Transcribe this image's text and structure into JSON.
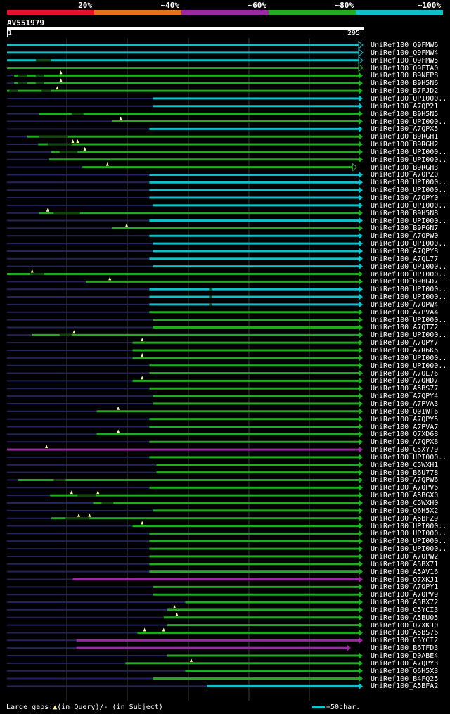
{
  "query": {
    "id": "AV551979",
    "start": "1",
    "end": "295",
    "length": 295
  },
  "legend": {
    "labels": [
      "20%",
      "~40%",
      "~60%",
      "~80%",
      "~100%"
    ],
    "colors": [
      "#e8102a",
      "#e8721a",
      "#9a2aa0",
      "#22aa22",
      "#10c0c8"
    ]
  },
  "footer": {
    "large_gaps": "Large gaps:",
    "query_part": "(in Query)/",
    "subject_part": "- (in Subject)",
    "triangle": "▲",
    "scale": "=50char."
  },
  "hits": [
    {
      "label": "UniRef100_Q9FMW6",
      "start": 1,
      "end": 295,
      "color": "#10c0c8",
      "hl": [],
      "arrow": "outline"
    },
    {
      "label": "UniRef100_Q9FMW4",
      "start": 1,
      "end": 295,
      "color": "#10c0c8",
      "hl": [],
      "arrow": "outline"
    },
    {
      "label": "UniRef100_Q9FMW5",
      "start": 1,
      "end": 295,
      "color": "#10c0c8",
      "hl": [
        [
          25,
          38
        ]
      ],
      "arrow": "outline"
    },
    {
      "label": "UniRef100_Q9FTA0",
      "start": 1,
      "end": 295,
      "color": "#22aa22",
      "hl": [],
      "arrow": "outline"
    },
    {
      "label": "UniRef100_B9NEP8",
      "start": 7,
      "end": 295,
      "color": "#22aa22",
      "hl": [
        [
          10,
          18
        ],
        [
          25,
          32
        ]
      ],
      "arrow": "solid",
      "gaps": [
        46
      ]
    },
    {
      "label": "UniRef100_B9H5N6",
      "start": 7,
      "end": 295,
      "color": "#22aa22",
      "hl": [
        [
          10,
          18
        ],
        [
          25,
          32
        ]
      ],
      "arrow": "solid",
      "gaps": [
        46
      ]
    },
    {
      "label": "UniRef100_B7FJD2",
      "start": 1,
      "end": 295,
      "color": "#22aa22",
      "hl": [
        [
          3,
          10
        ],
        [
          30,
          38
        ]
      ],
      "arrow": "solid",
      "gaps": [
        43
      ]
    },
    {
      "label": "UniRef100_UPI000..",
      "start": 123,
      "end": 295,
      "color": "#10c0c8",
      "hl": [],
      "arrow": "solid"
    },
    {
      "label": "UniRef100_A7QP21",
      "start": 123,
      "end": 295,
      "color": "#10c0c8",
      "hl": [],
      "arrow": "solid"
    },
    {
      "label": "UniRef100_B9H5N5",
      "start": 28,
      "end": 295,
      "color": "#22aa22",
      "hl": [
        [
          55,
          65
        ]
      ],
      "arrow": "solid"
    },
    {
      "label": "UniRef100_UPI000..",
      "start": 89,
      "end": 295,
      "color": "#22aa22",
      "hl": [],
      "arrow": "solid",
      "gaps": [
        96
      ]
    },
    {
      "label": "UniRef100_A7QPX5",
      "start": 120,
      "end": 295,
      "color": "#10c0c8",
      "hl": [],
      "arrow": "solid"
    },
    {
      "label": "UniRef100_B9RGH1",
      "start": 18,
      "end": 295,
      "color": "#22aa22",
      "hl": [
        [
          28,
          52
        ]
      ],
      "arrow": "solid"
    },
    {
      "label": "UniRef100_B9RGH2",
      "start": 27,
      "end": 295,
      "color": "#22aa22",
      "hl": [
        [
          35,
          55
        ]
      ],
      "arrow": "solid",
      "gaps": [
        56,
        60
      ]
    },
    {
      "label": "UniRef100_UPI000..",
      "start": 38,
      "end": 295,
      "color": "#22aa22",
      "hl": [
        [
          45,
          60
        ]
      ],
      "arrow": "solid",
      "gaps": [
        66
      ]
    },
    {
      "label": "UniRef100_UPI000..",
      "start": 36,
      "end": 295,
      "color": "#22aa22",
      "hl": [],
      "arrow": "solid"
    },
    {
      "label": "UniRef100_B9RGH3",
      "start": 64,
      "end": 290,
      "color": "#22aa22",
      "hl": [],
      "arrow": "outline",
      "gaps": [
        85
      ]
    },
    {
      "label": "UniRef100_A7QPZ0",
      "start": 120,
      "end": 295,
      "color": "#10c0c8",
      "hl": [],
      "arrow": "solid"
    },
    {
      "label": "UniRef100_UPI000..",
      "start": 120,
      "end": 295,
      "color": "#10c0c8",
      "hl": [],
      "arrow": "solid"
    },
    {
      "label": "UniRef100_UPI000..",
      "start": 120,
      "end": 295,
      "color": "#10c0c8",
      "hl": [],
      "arrow": "solid"
    },
    {
      "label": "UniRef100_A7QPY0",
      "start": 120,
      "end": 295,
      "color": "#10c0c8",
      "hl": [],
      "arrow": "solid"
    },
    {
      "label": "UniRef100_UPI000..",
      "start": 123,
      "end": 295,
      "color": "#10c0c8",
      "hl": [],
      "arrow": "solid"
    },
    {
      "label": "UniRef100_B9H5N8",
      "start": 28,
      "end": 295,
      "color": "#22aa22",
      "hl": [
        [
          40,
          62
        ]
      ],
      "arrow": "solid",
      "gaps": [
        35
      ]
    },
    {
      "label": "UniRef100_UPI000..",
      "start": 120,
      "end": 295,
      "color": "#10c0c8",
      "hl": [],
      "arrow": "solid"
    },
    {
      "label": "UniRef100_B9P6N7",
      "start": 89,
      "end": 295,
      "color": "#22aa22",
      "hl": [],
      "arrow": "solid",
      "gaps": [
        101
      ]
    },
    {
      "label": "UniRef100_A7QPW0",
      "start": 120,
      "end": 295,
      "color": "#10c0c8",
      "hl": [],
      "arrow": "solid"
    },
    {
      "label": "UniRef100_UPI000..",
      "start": 123,
      "end": 295,
      "color": "#10c0c8",
      "hl": [],
      "arrow": "solid"
    },
    {
      "label": "UniRef100_A7QPY8",
      "start": 123,
      "end": 295,
      "color": "#10c0c8",
      "hl": [],
      "arrow": "solid"
    },
    {
      "label": "UniRef100_A7QL77",
      "start": 120,
      "end": 295,
      "color": "#10c0c8",
      "hl": [],
      "arrow": "solid"
    },
    {
      "label": "UniRef100_UPI000..",
      "start": 123,
      "end": 295,
      "color": "#10c0c8",
      "hl": [],
      "arrow": "solid"
    },
    {
      "label": "UniRef100_UPI000..",
      "start": 1,
      "end": 295,
      "color": "#22aa22",
      "hl": [
        [
          20,
          32
        ]
      ],
      "arrow": "solid",
      "gaps": [
        22
      ]
    },
    {
      "label": "UniRef100_B9HGD7",
      "start": 67,
      "end": 295,
      "color": "#22aa22",
      "hl": [],
      "arrow": "solid",
      "gaps": [
        87
      ]
    },
    {
      "label": "UniRef100_UPI000..",
      "start": 120,
      "end": 295,
      "color": "#10c0c8",
      "hl": [
        [
          170,
          172
        ]
      ],
      "arrow": "solid"
    },
    {
      "label": "UniRef100_UPI000..",
      "start": 120,
      "end": 295,
      "color": "#10c0c8",
      "hl": [
        [
          170,
          172
        ]
      ],
      "arrow": "solid"
    },
    {
      "label": "UniRef100_A7QPW4",
      "start": 120,
      "end": 295,
      "color": "#10c0c8",
      "hl": [
        [
          170,
          172
        ]
      ],
      "arrow": "solid"
    },
    {
      "label": "UniRef100_A7PVA4",
      "start": 120,
      "end": 295,
      "color": "#22aa22",
      "hl": [],
      "arrow": "solid"
    },
    {
      "label": "UniRef100_UPI000..",
      "start": 123,
      "end": 295,
      "color": "#22aa22",
      "hl": [],
      "arrow": "solid"
    },
    {
      "label": "UniRef100_A7QTZ2",
      "start": 123,
      "end": 295,
      "color": "#22aa22",
      "hl": [],
      "arrow": "solid"
    },
    {
      "label": "UniRef100_UPI000..",
      "start": 22,
      "end": 295,
      "color": "#22aa22",
      "hl": [
        [
          45,
          55
        ]
      ],
      "arrow": "solid",
      "gaps": [
        57
      ]
    },
    {
      "label": "UniRef100_A7QPY7",
      "start": 106,
      "end": 295,
      "color": "#22aa22",
      "hl": [],
      "arrow": "solid",
      "gaps": [
        114
      ]
    },
    {
      "label": "UniRef100_A7R6K6",
      "start": 106,
      "end": 295,
      "color": "#22aa22",
      "hl": [],
      "arrow": "solid"
    },
    {
      "label": "UniRef100_UPI000..",
      "start": 106,
      "end": 295,
      "color": "#22aa22",
      "hl": [],
      "arrow": "solid",
      "gaps": [
        114
      ]
    },
    {
      "label": "UniRef100_UPI000..",
      "start": 120,
      "end": 295,
      "color": "#22aa22",
      "hl": [],
      "arrow": "solid"
    },
    {
      "label": "UniRef100_A7QL76",
      "start": 120,
      "end": 295,
      "color": "#22aa22",
      "hl": [],
      "arrow": "solid"
    },
    {
      "label": "UniRef100_A7QHD7",
      "start": 106,
      "end": 295,
      "color": "#22aa22",
      "hl": [],
      "arrow": "solid",
      "gaps": [
        114
      ]
    },
    {
      "label": "UniRef100_A5BS77",
      "start": 120,
      "end": 295,
      "color": "#22aa22",
      "hl": [],
      "arrow": "solid"
    },
    {
      "label": "UniRef100_A7QPY4",
      "start": 123,
      "end": 295,
      "color": "#22aa22",
      "hl": [],
      "arrow": "solid"
    },
    {
      "label": "UniRef100_A7PVA3",
      "start": 123,
      "end": 295,
      "color": "#22aa22",
      "hl": [],
      "arrow": "solid"
    },
    {
      "label": "UniRef100_Q0IWT6",
      "start": 76,
      "end": 295,
      "color": "#22aa22",
      "hl": [],
      "arrow": "solid",
      "gaps": [
        94
      ]
    },
    {
      "label": "UniRef100_A7QPY5",
      "start": 120,
      "end": 295,
      "color": "#22aa22",
      "hl": [],
      "arrow": "solid"
    },
    {
      "label": "UniRef100_A7PVA7",
      "start": 120,
      "end": 295,
      "color": "#22aa22",
      "hl": [],
      "arrow": "solid"
    },
    {
      "label": "UniRef100_Q7XD68",
      "start": 76,
      "end": 295,
      "color": "#22aa22",
      "hl": [],
      "arrow": "solid",
      "gaps": [
        94
      ]
    },
    {
      "label": "UniRef100_A7QPX8",
      "start": 120,
      "end": 295,
      "color": "#22aa22",
      "hl": [],
      "arrow": "solid"
    },
    {
      "label": "UniRef100_C5XY79",
      "start": 1,
      "end": 295,
      "color": "#9a2aa0",
      "hl": [],
      "arrow": "solid",
      "gaps": [
        34
      ]
    },
    {
      "label": "UniRef100_UPI000..",
      "start": 120,
      "end": 295,
      "color": "#22aa22",
      "hl": [],
      "arrow": "solid"
    },
    {
      "label": "UniRef100_C5WXH1",
      "start": 126,
      "end": 295,
      "color": "#22aa22",
      "hl": [],
      "arrow": "solid"
    },
    {
      "label": "UniRef100_B6U778",
      "start": 126,
      "end": 295,
      "color": "#22aa22",
      "hl": [],
      "arrow": "solid"
    },
    {
      "label": "UniRef100_A7QPW6",
      "start": 10,
      "end": 295,
      "color": "#22aa22",
      "hl": [
        [
          40,
          50
        ]
      ],
      "arrow": "solid"
    },
    {
      "label": "UniRef100_A7QPV6",
      "start": 120,
      "end": 295,
      "color": "#22aa22",
      "hl": [],
      "arrow": "solid"
    },
    {
      "label": "UniRef100_A5BGX0",
      "start": 37,
      "end": 295,
      "color": "#22aa22",
      "hl": [
        [
          60,
          75
        ]
      ],
      "arrow": "solid",
      "gaps": [
        55,
        77
      ]
    },
    {
      "label": "UniRef100_C5WXH0",
      "start": 73,
      "end": 295,
      "color": "#22aa22",
      "hl": [
        [
          80,
          90
        ]
      ],
      "arrow": "solid"
    },
    {
      "label": "UniRef100_Q6H5X2",
      "start": 123,
      "end": 295,
      "color": "#22aa22",
      "hl": [],
      "arrow": "solid"
    },
    {
      "label": "UniRef100_A5BFZ9",
      "start": 38,
      "end": 295,
      "color": "#22aa22",
      "hl": [
        [
          50,
          70
        ]
      ],
      "arrow": "solid",
      "gaps": [
        61,
        70
      ]
    },
    {
      "label": "UniRef100_UPI000..",
      "start": 106,
      "end": 295,
      "color": "#22aa22",
      "hl": [],
      "arrow": "solid",
      "gaps": [
        114
      ]
    },
    {
      "label": "UniRef100_UPI000..",
      "start": 120,
      "end": 295,
      "color": "#22aa22",
      "hl": [],
      "arrow": "solid"
    },
    {
      "label": "UniRef100_UPI000..",
      "start": 120,
      "end": 295,
      "color": "#22aa22",
      "hl": [],
      "arrow": "solid"
    },
    {
      "label": "UniRef100_UPI000..",
      "start": 120,
      "end": 295,
      "color": "#22aa22",
      "hl": [],
      "arrow": "solid"
    },
    {
      "label": "UniRef100_A7QPW2",
      "start": 120,
      "end": 295,
      "color": "#22aa22",
      "hl": [],
      "arrow": "solid"
    },
    {
      "label": "UniRef100_A5BX71",
      "start": 120,
      "end": 295,
      "color": "#22aa22",
      "hl": [],
      "arrow": "solid"
    },
    {
      "label": "UniRef100_A5AV16",
      "start": 120,
      "end": 295,
      "color": "#22aa22",
      "hl": [],
      "arrow": "solid"
    },
    {
      "label": "UniRef100_Q7XKJ1",
      "start": 56,
      "end": 295,
      "color": "#9a2aa0",
      "hl": [],
      "arrow": "solid"
    },
    {
      "label": "UniRef100_A7QPY1",
      "start": 123,
      "end": 295,
      "color": "#22aa22",
      "hl": [],
      "arrow": "solid"
    },
    {
      "label": "UniRef100_A7QPV9",
      "start": 123,
      "end": 295,
      "color": "#22aa22",
      "hl": [],
      "arrow": "solid"
    },
    {
      "label": "UniRef100_A5BX72",
      "start": 150,
      "end": 295,
      "color": "#22aa22",
      "hl": [],
      "arrow": "solid"
    },
    {
      "label": "UniRef100_C5YCI3",
      "start": 135,
      "end": 295,
      "color": "#22aa22",
      "hl": [],
      "arrow": "solid",
      "gaps": [
        141
      ]
    },
    {
      "label": "UniRef100_A5BU05",
      "start": 132,
      "end": 295,
      "color": "#22aa22",
      "hl": [],
      "arrow": "solid",
      "gaps": [
        143
      ]
    },
    {
      "label": "UniRef100_Q7XKJ0",
      "start": 135,
      "end": 295,
      "color": "#22aa22",
      "hl": [],
      "arrow": "solid"
    },
    {
      "label": "UniRef100_A5BS76",
      "start": 110,
      "end": 295,
      "color": "#22aa22",
      "hl": [],
      "arrow": "solid",
      "gaps": [
        116,
        132
      ]
    },
    {
      "label": "UniRef100_C5YCI2",
      "start": 59,
      "end": 295,
      "color": "#9a2aa0",
      "hl": [],
      "arrow": "solid"
    },
    {
      "label": "UniRef100_B6TFD3",
      "start": 59,
      "end": 285,
      "color": "#9a2aa0",
      "hl": [],
      "arrow": "solid"
    },
    {
      "label": "UniRef100_D0ABE4",
      "start": 135,
      "end": 295,
      "color": "#22aa22",
      "hl": [],
      "arrow": "solid"
    },
    {
      "label": "UniRef100_A7QPY3",
      "start": 100,
      "end": 295,
      "color": "#22aa22",
      "hl": [],
      "arrow": "solid",
      "gaps": [
        155
      ]
    },
    {
      "label": "UniRef100_Q6H5X3",
      "start": 150,
      "end": 295,
      "color": "#22aa22",
      "hl": [],
      "arrow": "solid"
    },
    {
      "label": "UniRef100_B4FQ25",
      "start": 123,
      "end": 295,
      "color": "#22aa22",
      "hl": [],
      "arrow": "solid"
    },
    {
      "label": "UniRef100_A5BFA2",
      "start": 168,
      "end": 295,
      "color": "#10c0c8",
      "hl": [],
      "arrow": "solid"
    }
  ]
}
